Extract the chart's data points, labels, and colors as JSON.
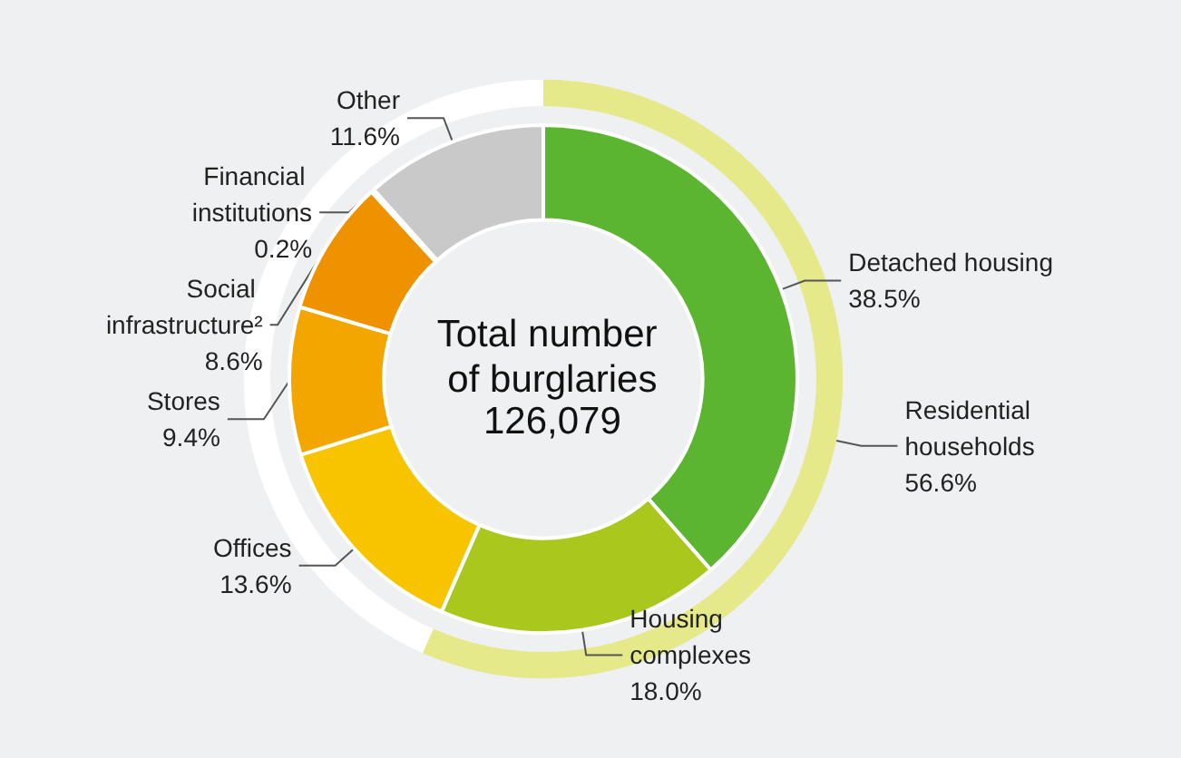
{
  "chart_data": [
    {
      "type": "donut",
      "title": "Total number of burglaries",
      "subtitle": "126,079",
      "legend": false,
      "categories": [
        "Detached housing",
        "Housing complexes",
        "Offices",
        "Stores",
        "Social infrastructure²",
        "Financial institutions",
        "Other"
      ],
      "values": [
        38.5,
        18.0,
        13.6,
        9.4,
        8.6,
        0.2,
        11.6
      ],
      "value_labels": [
        "38.5%",
        "18.0%",
        "13.6%",
        "9.4%",
        "8.6%",
        "0.2%",
        "11.6%"
      ],
      "colors": [
        "#5cb531",
        "#a9c71c",
        "#f8c400",
        "#f4a600",
        "#ef9200",
        "#e67e00",
        "#c9c9c9"
      ]
    },
    {
      "type": "donut",
      "legend": false,
      "categories": [
        "Residential households",
        null
      ],
      "values": [
        56.6,
        43.4
      ],
      "value_labels": [
        "56.6%",
        null
      ],
      "colors": [
        "#e5e98a",
        "#ffffff"
      ]
    }
  ]
}
